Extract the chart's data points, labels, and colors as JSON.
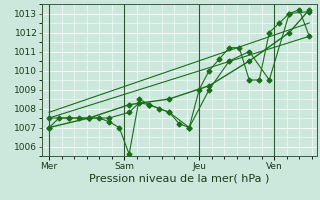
{
  "bg_color": "#cce8dc",
  "grid_color": "#ffffff",
  "line_color": "#1a6e1a",
  "xlabel": "Pression niveau de la mer( hPa )",
  "xlabel_fontsize": 8,
  "tick_fontsize": 6.5,
  "ylim": [
    1005.5,
    1013.5
  ],
  "yticks": [
    1006,
    1007,
    1008,
    1009,
    1010,
    1011,
    1012,
    1013
  ],
  "xtick_labels": [
    "Mer",
    "Sam",
    "Jeu",
    "Ven"
  ],
  "xtick_positions": [
    0,
    30,
    60,
    90
  ],
  "vline_positions": [
    0,
    30,
    60,
    90
  ],
  "series1_x": [
    0,
    4,
    8,
    12,
    16,
    20,
    24,
    28,
    32,
    36,
    40,
    44,
    48,
    52,
    56,
    60,
    64,
    68,
    72,
    76,
    80,
    84,
    88,
    92,
    96,
    100,
    104
  ],
  "series1_y": [
    1007.0,
    1007.5,
    1007.5,
    1007.5,
    1007.5,
    1007.5,
    1007.3,
    1007.0,
    1005.6,
    1008.5,
    1008.2,
    1008.0,
    1007.8,
    1007.2,
    1007.0,
    1009.0,
    1010.0,
    1010.6,
    1011.2,
    1011.2,
    1009.5,
    1009.5,
    1012.0,
    1012.5,
    1013.0,
    1013.2,
    1011.8
  ],
  "series2_x": [
    0,
    8,
    16,
    24,
    32,
    36,
    40,
    48,
    56,
    64,
    72,
    80,
    88,
    96,
    104
  ],
  "series2_y": [
    1007.5,
    1007.5,
    1007.5,
    1007.5,
    1007.8,
    1008.3,
    1008.2,
    1007.8,
    1007.0,
    1009.0,
    1010.5,
    1011.0,
    1009.5,
    1013.0,
    1013.1
  ],
  "series3_x": [
    0,
    16,
    32,
    48,
    64,
    80,
    96,
    104
  ],
  "series3_y": [
    1007.0,
    1007.5,
    1008.2,
    1008.5,
    1009.2,
    1010.5,
    1012.0,
    1013.2
  ],
  "series4_x": [
    0,
    104
  ],
  "series4_y": [
    1007.8,
    1012.5
  ],
  "series5_x": [
    0,
    104
  ],
  "series5_y": [
    1007.5,
    1011.8
  ],
  "marker": "D",
  "markersize": 2.5,
  "xlim": [
    -3,
    107
  ]
}
